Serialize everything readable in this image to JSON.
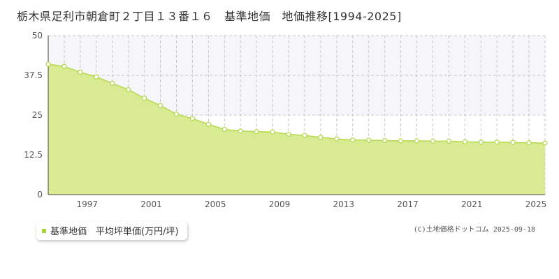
{
  "title": "栃木県足利市朝倉町２丁目１３番１６　基準地価　地価推移[1994-2025]",
  "legend": {
    "label": "基準地価　平均坪単価(万円/坪)"
  },
  "credit": "(C)土地価格ドットコム 2025-09-18",
  "colors": {
    "fill": "#d8eb93",
    "line": "#b5d94e",
    "marker_fill": "#ffffff",
    "marker_stroke": "#b5d94e",
    "grid": "#c8c8c8",
    "band": "#f6f6fa",
    "legend_marker": "#a8d23c"
  },
  "chart_data": {
    "type": "area",
    "title": "栃木県足利市朝倉町２丁目１３番１６　基準地価　地価推移[1994-2025]",
    "x": [
      1994,
      1995,
      1996,
      1997,
      1998,
      1999,
      2000,
      2001,
      2002,
      2003,
      2004,
      2005,
      2006,
      2007,
      2008,
      2009,
      2010,
      2011,
      2012,
      2013,
      2014,
      2015,
      2016,
      2017,
      2018,
      2019,
      2020,
      2021,
      2022,
      2023,
      2024,
      2025
    ],
    "series": [
      {
        "name": "基準地価　平均坪単価(万円/坪)",
        "values": [
          41.0,
          40.3,
          38.5,
          37.0,
          35.0,
          33.0,
          30.3,
          28.0,
          25.3,
          23.9,
          22.1,
          20.5,
          20.0,
          19.8,
          19.7,
          19.0,
          18.6,
          18.0,
          17.5,
          17.2,
          17.1,
          17.0,
          16.9,
          16.9,
          16.8,
          16.8,
          16.6,
          16.5,
          16.5,
          16.4,
          16.3,
          16.2
        ]
      }
    ],
    "xticks": [
      "1997",
      "2001",
      "2005",
      "2009",
      "2013",
      "2017",
      "2021",
      "2025"
    ],
    "yticks": [
      "0",
      "12.5",
      "25",
      "37.5",
      "50"
    ],
    "xlim": [
      1994,
      2025
    ],
    "ylim": [
      0,
      50
    ],
    "grid": true,
    "legend_position": "bottom-left"
  }
}
